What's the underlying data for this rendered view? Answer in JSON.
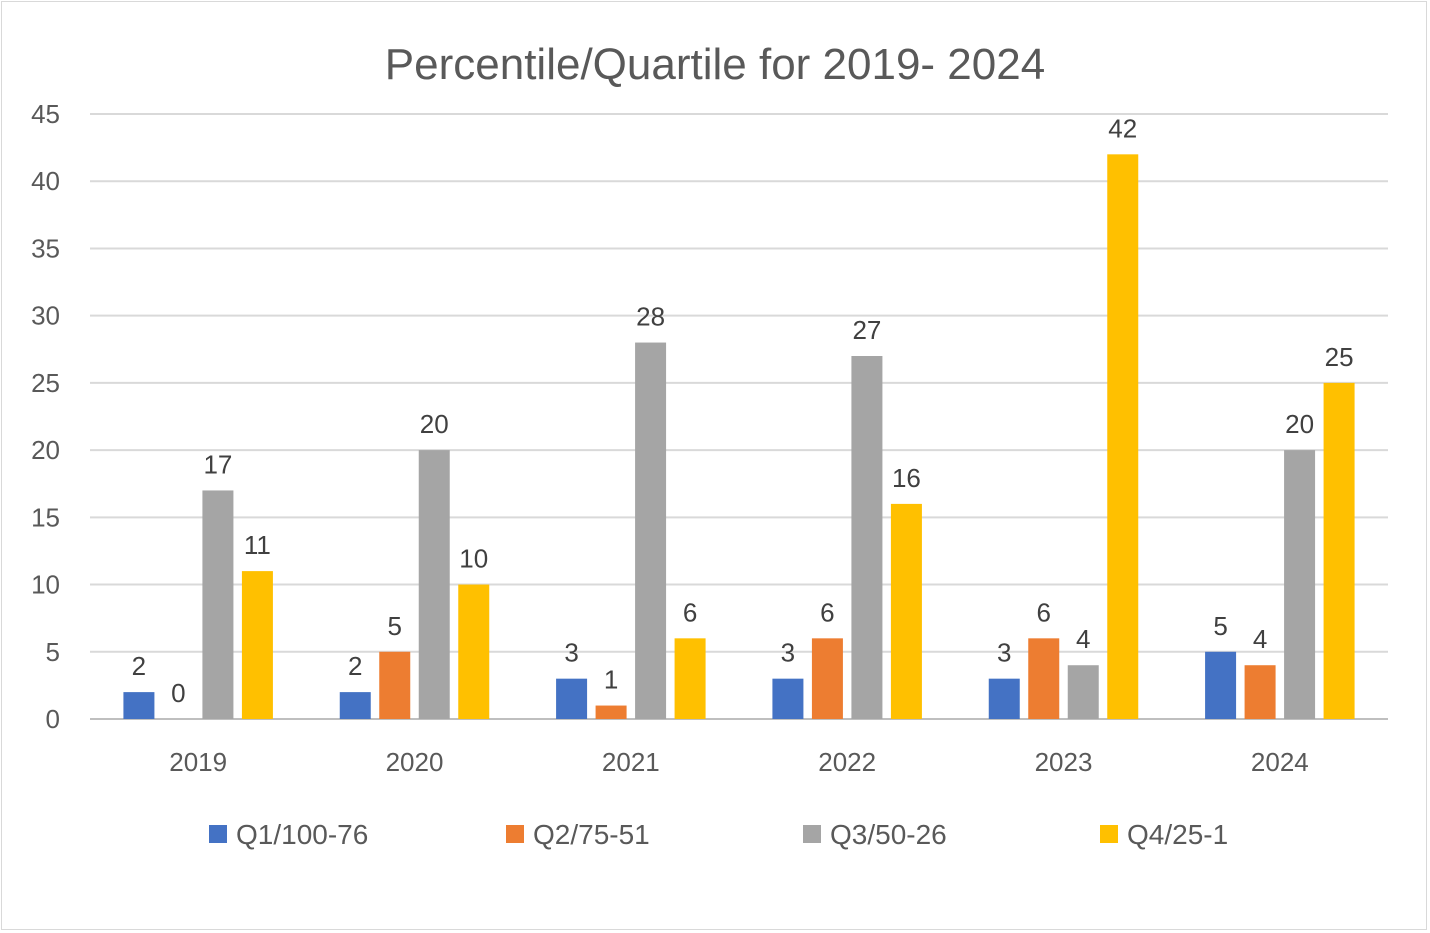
{
  "chart_data": {
    "type": "bar",
    "title": "Percentile/Quartile for 2019- 2024",
    "xlabel": "",
    "ylabel": "",
    "categories": [
      "2019",
      "2020",
      "2021",
      "2022",
      "2023",
      "2024"
    ],
    "ylim": [
      0,
      45
    ],
    "y_ticks": [
      0,
      5,
      10,
      15,
      20,
      25,
      30,
      35,
      40,
      45
    ],
    "grid": true,
    "legend_position": "bottom",
    "data_labels": true,
    "series": [
      {
        "name": "Q1/100-76",
        "color": "#4472C4",
        "values": [
          2,
          2,
          3,
          3,
          3,
          5
        ]
      },
      {
        "name": "Q2/75-51",
        "color": "#ED7D31",
        "values": [
          0,
          5,
          1,
          6,
          6,
          4
        ]
      },
      {
        "name": "Q3/50-26",
        "color": "#A5A5A5",
        "values": [
          17,
          20,
          28,
          27,
          4,
          20
        ]
      },
      {
        "name": "Q4/25-1",
        "color": "#FFC000",
        "values": [
          11,
          10,
          6,
          16,
          42,
          25
        ]
      }
    ]
  }
}
